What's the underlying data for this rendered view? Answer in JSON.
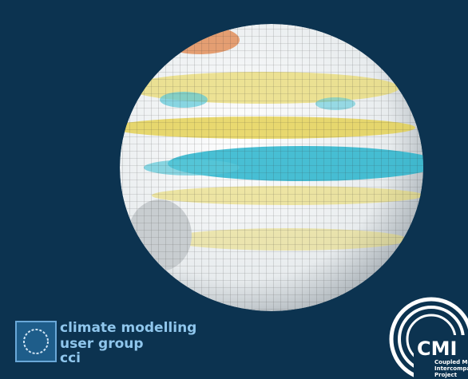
{
  "logos": {
    "left": {
      "lines": [
        "climate modelling",
        "user group",
        "cci"
      ]
    },
    "right": {
      "acronym": "CMI",
      "lines": [
        "Coupled Mode",
        "Intercompar",
        "Project"
      ]
    }
  }
}
